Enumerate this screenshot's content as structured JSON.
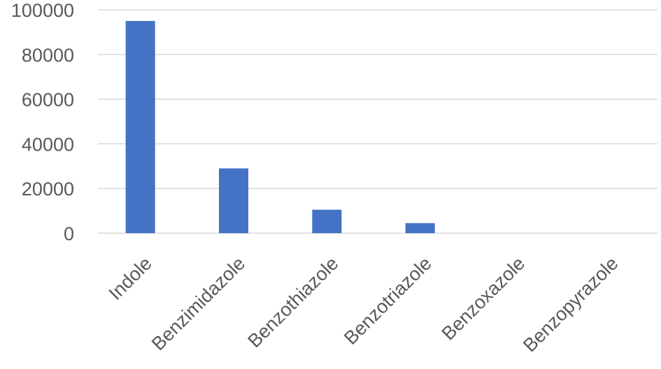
{
  "chart_data": {
    "type": "bar",
    "title": "",
    "xlabel": "",
    "ylabel": "",
    "categories": [
      "Indole",
      "Benzimidazole",
      "Benzothiazole",
      "Benzotriazole",
      "Benzoxazole",
      "Benzopyrazole"
    ],
    "values": [
      95000,
      29000,
      10500,
      4500,
      0,
      0
    ],
    "ylim": [
      0,
      100000
    ],
    "yticks": [
      0,
      20000,
      40000,
      60000,
      80000,
      100000
    ],
    "ytick_labels": [
      "0",
      "20000",
      "40000",
      "60000",
      "80000",
      "100000"
    ],
    "grid": true,
    "legend": "none",
    "bar_color": "#4472c4",
    "grid_color": "#d9d9d9",
    "text_color": "#595959"
  }
}
